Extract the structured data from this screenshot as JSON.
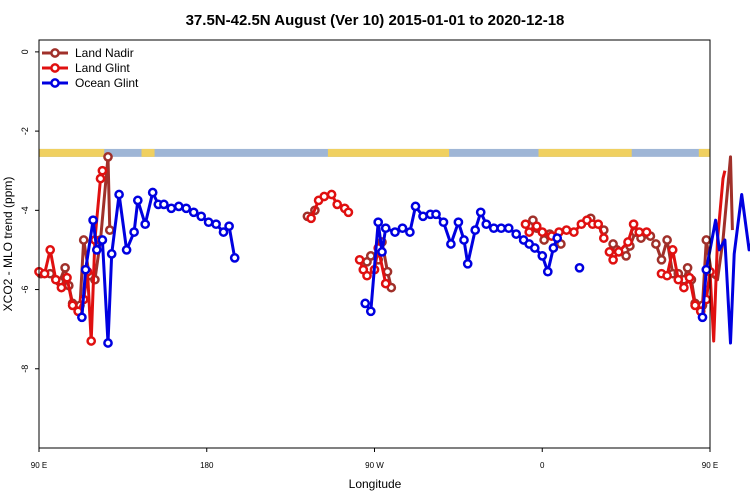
{
  "chart_data": {
    "type": "line",
    "title": "37.5N-42.5N August (Ver 10)   2015-01-01 to 2020-12-18",
    "xlabel": "Longitude",
    "ylabel": "XCO2 - MLO trend (ppm)",
    "xlim": [
      90,
      450
    ],
    "ylim": [
      -10,
      0.3
    ],
    "x_ticks": [
      {
        "value": 90,
        "label": "90 E"
      },
      {
        "value": 180,
        "label": "180"
      },
      {
        "value": 270,
        "label": "90 W"
      },
      {
        "value": 360,
        "label": "0"
      },
      {
        "value": 450,
        "label": "90 E"
      },
      {
        "value": 540,
        "label": "180"
      }
    ],
    "y_ticks": [
      {
        "value": 0,
        "label": "0"
      },
      {
        "value": -2,
        "label": "-2"
      },
      {
        "value": -4,
        "label": "-4"
      },
      {
        "value": -6,
        "label": "-6"
      },
      {
        "value": -8,
        "label": "-8"
      }
    ],
    "grid": false,
    "legend_position": "top-left",
    "land_band": {
      "y_top": -2.45,
      "y_bottom": -2.65,
      "ocean_color": "#9fb6d6",
      "land_color": "#f0d060",
      "land_segments": [
        [
          90,
          125
        ],
        [
          145,
          152
        ],
        [
          245,
          310
        ],
        [
          358,
          408
        ],
        [
          444,
          497
        ],
        [
          505,
          510
        ]
      ]
    },
    "series": [
      {
        "name": "Land Nadir",
        "color": "#a0302a",
        "segments": [
          [
            [
              91,
              -5.6
            ],
            [
              96,
              -5.6
            ],
            [
              101,
              -5.8
            ],
            [
              104,
              -5.45
            ],
            [
              106,
              -5.9
            ],
            [
              108,
              -6.35
            ],
            [
              112,
              -6.4
            ],
            [
              114,
              -4.75
            ],
            [
              117,
              -5.65
            ],
            [
              120,
              -5.75
            ],
            [
              123,
              -4.75
            ],
            [
              127,
              -2.65
            ],
            [
              128,
              -4.5
            ]
          ],
          [
            [
              234,
              -4.15
            ],
            [
              238,
              -4.0
            ]
          ],
          [
            [
              266,
              -5.3
            ],
            [
              268,
              -5.15
            ],
            [
              272,
              -5.25
            ],
            [
              274,
              -4.8
            ],
            [
              277,
              -5.55
            ],
            [
              279,
              -5.95
            ]
          ],
          [
            [
              353,
              -4.4
            ],
            [
              355,
              -4.25
            ],
            [
              357,
              -4.45
            ],
            [
              361,
              -4.75
            ],
            [
              364,
              -4.6
            ],
            [
              370,
              -4.85
            ]
          ],
          [
            [
              386,
              -4.2
            ],
            [
              393,
              -4.5
            ]
          ],
          [
            [
              398,
              -4.85
            ],
            [
              400,
              -5.0
            ],
            [
              405,
              -5.15
            ],
            [
              407,
              -4.9
            ],
            [
              410,
              -4.55
            ],
            [
              413,
              -4.7
            ],
            [
              418,
              -4.65
            ]
          ],
          [
            [
              421,
              -4.85
            ],
            [
              424,
              -5.25
            ],
            [
              427,
              -4.75
            ],
            [
              430,
              -5.6
            ],
            [
              433,
              -5.6
            ],
            [
              436,
              -5.75
            ],
            [
              438,
              -5.45
            ],
            [
              440,
              -5.75
            ],
            [
              442,
              -6.35
            ],
            [
              446,
              -6.4
            ],
            [
              448,
              -4.75
            ],
            [
              451,
              -5.65
            ],
            [
              454,
              -5.75
            ],
            [
              457,
              -4.75
            ],
            [
              461,
              -2.65
            ],
            [
              462,
              -4.5
            ]
          ]
        ]
      },
      {
        "name": "Land Glint",
        "color": "#e01010",
        "segments": [
          [
            [
              90,
              -5.55
            ],
            [
              93,
              -5.6
            ],
            [
              96,
              -5.0
            ],
            [
              99,
              -5.75
            ],
            [
              102,
              -5.95
            ],
            [
              105,
              -5.7
            ],
            [
              108,
              -6.4
            ],
            [
              111,
              -6.55
            ],
            [
              114,
              -6.25
            ],
            [
              116,
              -5.55
            ],
            [
              118,
              -7.3
            ],
            [
              120,
              -4.75
            ],
            [
              123,
              -3.2
            ],
            [
              124,
              -3.0
            ]
          ],
          [
            [
              236,
              -4.2
            ],
            [
              240,
              -3.75
            ],
            [
              243,
              -3.65
            ],
            [
              247,
              -3.6
            ],
            [
              250,
              -3.85
            ],
            [
              254,
              -3.95
            ],
            [
              256,
              -4.05
            ]
          ],
          [
            [
              262,
              -5.25
            ],
            [
              264,
              -5.5
            ],
            [
              266,
              -5.65
            ],
            [
              270,
              -5.5
            ],
            [
              272,
              -4.95
            ],
            [
              276,
              -5.85
            ]
          ],
          [
            [
              351,
              -4.35
            ],
            [
              353,
              -4.55
            ],
            [
              357,
              -4.4
            ],
            [
              360,
              -4.55
            ],
            [
              365,
              -4.65
            ],
            [
              369,
              -4.55
            ],
            [
              373,
              -4.5
            ],
            [
              377,
              -4.55
            ],
            [
              381,
              -4.35
            ],
            [
              384,
              -4.25
            ],
            [
              387,
              -4.35
            ],
            [
              390,
              -4.35
            ],
            [
              393,
              -4.7
            ]
          ],
          [
            [
              396,
              -5.05
            ],
            [
              398,
              -5.25
            ],
            [
              401,
              -5.05
            ],
            [
              406,
              -4.8
            ],
            [
              409,
              -4.35
            ],
            [
              412,
              -4.55
            ],
            [
              416,
              -4.55
            ]
          ],
          [
            [
              424,
              -5.6
            ],
            [
              427,
              -5.65
            ],
            [
              430,
              -5.0
            ],
            [
              433,
              -5.75
            ],
            [
              436,
              -5.95
            ],
            [
              439,
              -5.7
            ],
            [
              442,
              -6.4
            ],
            [
              445,
              -6.55
            ],
            [
              448,
              -6.25
            ],
            [
              450,
              -5.55
            ],
            [
              452,
              -7.3
            ],
            [
              454,
              -4.75
            ],
            [
              457,
              -3.2
            ],
            [
              458,
              -3.0
            ]
          ]
        ]
      },
      {
        "name": "Ocean Glint",
        "color": "#0000e0",
        "segments": [
          [
            [
              113,
              -6.7
            ],
            [
              115,
              -5.5
            ],
            [
              119,
              -4.25
            ],
            [
              121,
              -5.0
            ],
            [
              124,
              -4.75
            ],
            [
              127,
              -7.35
            ],
            [
              129,
              -5.1
            ],
            [
              133,
              -3.6
            ],
            [
              137,
              -5.0
            ],
            [
              141,
              -4.55
            ],
            [
              143,
              -3.75
            ],
            [
              147,
              -4.35
            ],
            [
              151,
              -3.55
            ],
            [
              154,
              -3.85
            ],
            [
              157,
              -3.85
            ],
            [
              161,
              -3.95
            ],
            [
              165,
              -3.9
            ],
            [
              169,
              -3.95
            ],
            [
              173,
              -4.05
            ],
            [
              177,
              -4.15
            ],
            [
              181,
              -4.3
            ],
            [
              185,
              -4.35
            ],
            [
              189,
              -4.55
            ],
            [
              192,
              -4.4
            ],
            [
              195,
              -5.2
            ]
          ],
          [
            [
              265,
              -6.35
            ],
            [
              268,
              -6.55
            ],
            [
              272,
              -4.3
            ],
            [
              274,
              -5.05
            ],
            [
              276,
              -4.45
            ],
            [
              281,
              -4.55
            ],
            [
              285,
              -4.45
            ],
            [
              289,
              -4.55
            ],
            [
              292,
              -3.9
            ],
            [
              296,
              -4.15
            ],
            [
              300,
              -4.1
            ],
            [
              303,
              -4.1
            ],
            [
              307,
              -4.3
            ],
            [
              311,
              -4.85
            ],
            [
              315,
              -4.3
            ],
            [
              318,
              -4.75
            ],
            [
              320,
              -5.35
            ],
            [
              324,
              -4.5
            ],
            [
              327,
              -4.05
            ],
            [
              330,
              -4.35
            ],
            [
              334,
              -4.45
            ],
            [
              338,
              -4.45
            ],
            [
              342,
              -4.45
            ],
            [
              346,
              -4.6
            ],
            [
              350,
              -4.75
            ],
            [
              353,
              -4.85
            ],
            [
              356,
              -4.95
            ],
            [
              360,
              -5.15
            ],
            [
              363,
              -5.55
            ],
            [
              366,
              -4.95
            ],
            [
              368,
              -4.7
            ]
          ],
          [
            [
              380,
              -5.45
            ]
          ],
          [
            [
              446,
              -6.7
            ],
            [
              448,
              -5.5
            ],
            [
              453,
              -4.25
            ],
            [
              455,
              -5.0
            ],
            [
              458,
              -4.75
            ],
            [
              461,
              -7.35
            ],
            [
              463,
              -5.1
            ],
            [
              467,
              -3.6
            ],
            [
              471,
              -5.0
            ],
            [
              475,
              -4.5
            ],
            [
              478,
              -3.75
            ],
            [
              482,
              -4.3
            ],
            [
              486,
              -3.55
            ]
          ]
        ]
      }
    ]
  }
}
